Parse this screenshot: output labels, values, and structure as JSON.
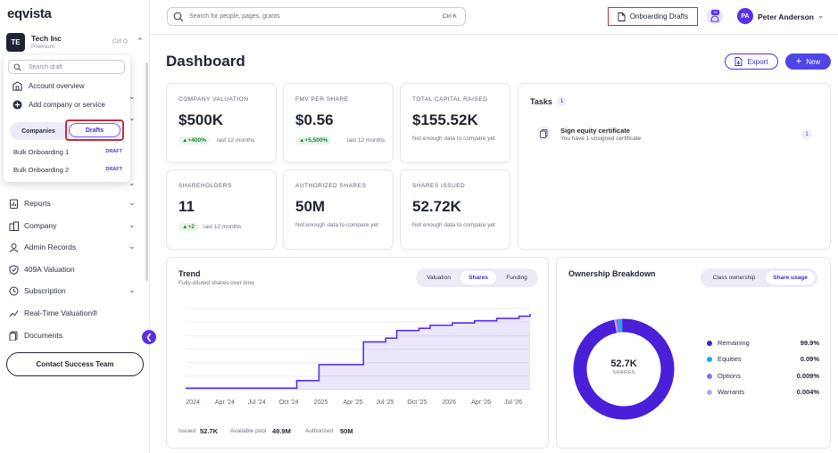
{
  "app": {
    "logo": "eqvista"
  },
  "org": {
    "badge": "TE",
    "name": "Tech Inc",
    "plan": "Premium",
    "shortcut": "Ctrl O"
  },
  "dropdown": {
    "search_placeholder": "Search draft",
    "items": [
      {
        "label": "Account overview",
        "icon": "building-icon"
      },
      {
        "label": "Add company or service",
        "icon": "plus-circle-icon"
      }
    ],
    "segments": {
      "companies": "Companies",
      "drafts": "Drafts",
      "active": "drafts"
    },
    "drafts": [
      {
        "label": "Bulk Onboarding 1",
        "tag": "DRAFT"
      },
      {
        "label": "Bulk Onboarding 2",
        "tag": "DRAFT"
      }
    ]
  },
  "sidebar": {
    "items": [
      {
        "label": "Reports",
        "icon": "report-icon",
        "has_chevron": true
      },
      {
        "label": "Company",
        "icon": "company-icon",
        "has_chevron": true
      },
      {
        "label": "Admin Records",
        "icon": "admin-records-icon",
        "has_chevron": true
      },
      {
        "label": "409A Valuation",
        "icon": "shield-check-icon",
        "has_chevron": false
      },
      {
        "label": "Subscription",
        "icon": "subscription-icon",
        "has_chevron": true
      },
      {
        "label": "Real-Time Valuation®",
        "icon": "trend-line-icon",
        "has_chevron": false
      },
      {
        "label": "Documents",
        "icon": "documents-icon",
        "has_chevron": false
      }
    ],
    "contact_button": "Contact Success Team"
  },
  "topbar": {
    "search_placeholder": "Search for people, pages, grants",
    "search_shortcut": "Ctrl K",
    "onboarding_button": "Onboarding Drafts",
    "notification_badge": "18",
    "user_initials": "PA",
    "user_name": "Peter Anderson"
  },
  "page": {
    "title": "Dashboard",
    "export_label": "Export",
    "new_label": "New"
  },
  "metrics": [
    {
      "label": "COMPANY VALUATION",
      "value": "$500K",
      "change": "▲+400%",
      "period": "last 12 months"
    },
    {
      "label": "FMV PER SHARE",
      "value": "$0.56",
      "change": "▲+5,500%",
      "period": "last 12 months"
    },
    {
      "label": "TOTAL CAPITAL RAISED",
      "value": "$155.52K",
      "note": "Not enough data to compare yet"
    },
    {
      "label": "SHAREHOLDERS",
      "value": "11",
      "change": "▲+2",
      "period": "last 12 months"
    },
    {
      "label": "AUTHORIZED SHARES",
      "value": "50M",
      "note": "Not enough data to compare yet"
    },
    {
      "label": "SHARES ISSUED",
      "value": "52.72K",
      "note": "Not enough data to compare yet"
    }
  ],
  "tasks": {
    "title": "Tasks",
    "count": "1",
    "items": [
      {
        "title": "Sign equity certificate",
        "subtitle": "You have 1 unsigned certificate",
        "count": "1"
      }
    ]
  },
  "trend": {
    "title": "Trend",
    "subtitle": "Fully-diluted shares over time",
    "tabs": [
      "Valuation",
      "Shares",
      "Funding"
    ],
    "active_tab": "Shares",
    "footer": [
      {
        "label": "Issued",
        "value": "52.7K"
      },
      {
        "label": "Available pool",
        "value": "49.9M"
      },
      {
        "label": "Authorized",
        "value": "50M"
      }
    ]
  },
  "ownership": {
    "title": "Ownership Breakdown",
    "tabs": [
      "Class ownership",
      "Share usage"
    ],
    "active_tab": "Share usage",
    "center_value": "52.7K",
    "center_label": "SHARES",
    "legend": [
      {
        "label": "Remaining",
        "value": "99.9%",
        "color": "#4a1fd8"
      },
      {
        "label": "Equities",
        "value": "0.09%",
        "color": "#1ea7e8"
      },
      {
        "label": "Options",
        "value": "0.009%",
        "color": "#8a6cf0"
      },
      {
        "label": "Warrants",
        "value": "0.004%",
        "color": "#b8a8f5"
      }
    ]
  },
  "chart_data": {
    "type": "area",
    "title": "Trend",
    "subtitle": "Fully-diluted shares over time",
    "x_tick_labels": [
      "2024",
      "Apr '24",
      "Jul '24",
      "Oct '24",
      "2025",
      "Apr '25",
      "Jul '25",
      "Oct '25",
      "2026",
      "Apr '26",
      "Jul '26"
    ],
    "series": [
      {
        "x": [
          "2024-01",
          "2024-10",
          "2024-11",
          "2025-01",
          "2025-04",
          "2025-05",
          "2025-07",
          "2025-08",
          "2025-10",
          "2025-11",
          "2026-01",
          "2026-03",
          "2026-05",
          "2026-07",
          "2026-08"
        ],
        "values": [
          0.02,
          0.02,
          0.12,
          0.33,
          0.33,
          0.63,
          0.68,
          0.78,
          0.81,
          0.85,
          0.88,
          0.91,
          0.94,
          0.97,
          1.0
        ]
      }
    ],
    "grid": true,
    "color": "#5b2ee8"
  }
}
